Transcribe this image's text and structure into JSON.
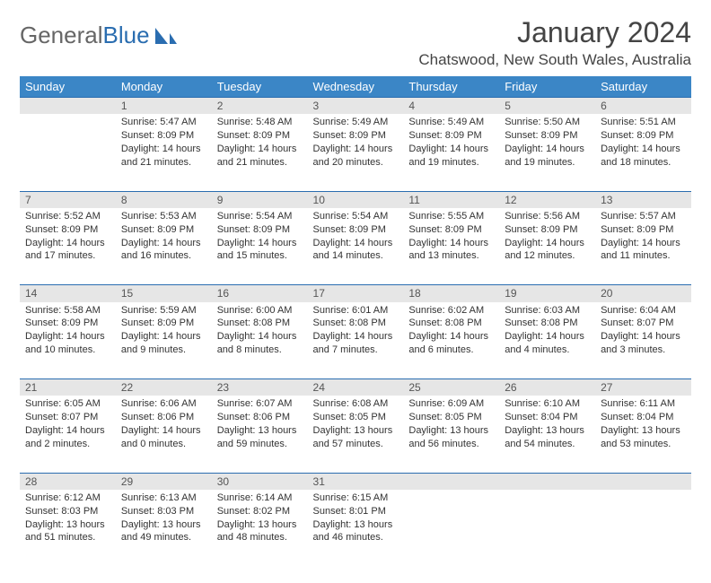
{
  "logo": {
    "text1": "General",
    "text2": "Blue"
  },
  "title": "January 2024",
  "location": "Chatswood, New South Wales, Australia",
  "colors": {
    "header_bg": "#3b86c6",
    "header_text": "#ffffff",
    "daynum_bg": "#e6e6e6",
    "row_border": "#2a6db0",
    "logo_gray": "#666666",
    "logo_blue": "#2a6db0"
  },
  "weekdays": [
    "Sunday",
    "Monday",
    "Tuesday",
    "Wednesday",
    "Thursday",
    "Friday",
    "Saturday"
  ],
  "weeks": [
    {
      "nums": [
        "",
        "1",
        "2",
        "3",
        "4",
        "5",
        "6"
      ],
      "cells": [
        {},
        {
          "sunrise": "Sunrise: 5:47 AM",
          "sunset": "Sunset: 8:09 PM",
          "daylight": "Daylight: 14 hours and 21 minutes."
        },
        {
          "sunrise": "Sunrise: 5:48 AM",
          "sunset": "Sunset: 8:09 PM",
          "daylight": "Daylight: 14 hours and 21 minutes."
        },
        {
          "sunrise": "Sunrise: 5:49 AM",
          "sunset": "Sunset: 8:09 PM",
          "daylight": "Daylight: 14 hours and 20 minutes."
        },
        {
          "sunrise": "Sunrise: 5:49 AM",
          "sunset": "Sunset: 8:09 PM",
          "daylight": "Daylight: 14 hours and 19 minutes."
        },
        {
          "sunrise": "Sunrise: 5:50 AM",
          "sunset": "Sunset: 8:09 PM",
          "daylight": "Daylight: 14 hours and 19 minutes."
        },
        {
          "sunrise": "Sunrise: 5:51 AM",
          "sunset": "Sunset: 8:09 PM",
          "daylight": "Daylight: 14 hours and 18 minutes."
        }
      ]
    },
    {
      "nums": [
        "7",
        "8",
        "9",
        "10",
        "11",
        "12",
        "13"
      ],
      "cells": [
        {
          "sunrise": "Sunrise: 5:52 AM",
          "sunset": "Sunset: 8:09 PM",
          "daylight": "Daylight: 14 hours and 17 minutes."
        },
        {
          "sunrise": "Sunrise: 5:53 AM",
          "sunset": "Sunset: 8:09 PM",
          "daylight": "Daylight: 14 hours and 16 minutes."
        },
        {
          "sunrise": "Sunrise: 5:54 AM",
          "sunset": "Sunset: 8:09 PM",
          "daylight": "Daylight: 14 hours and 15 minutes."
        },
        {
          "sunrise": "Sunrise: 5:54 AM",
          "sunset": "Sunset: 8:09 PM",
          "daylight": "Daylight: 14 hours and 14 minutes."
        },
        {
          "sunrise": "Sunrise: 5:55 AM",
          "sunset": "Sunset: 8:09 PM",
          "daylight": "Daylight: 14 hours and 13 minutes."
        },
        {
          "sunrise": "Sunrise: 5:56 AM",
          "sunset": "Sunset: 8:09 PM",
          "daylight": "Daylight: 14 hours and 12 minutes."
        },
        {
          "sunrise": "Sunrise: 5:57 AM",
          "sunset": "Sunset: 8:09 PM",
          "daylight": "Daylight: 14 hours and 11 minutes."
        }
      ]
    },
    {
      "nums": [
        "14",
        "15",
        "16",
        "17",
        "18",
        "19",
        "20"
      ],
      "cells": [
        {
          "sunrise": "Sunrise: 5:58 AM",
          "sunset": "Sunset: 8:09 PM",
          "daylight": "Daylight: 14 hours and 10 minutes."
        },
        {
          "sunrise": "Sunrise: 5:59 AM",
          "sunset": "Sunset: 8:09 PM",
          "daylight": "Daylight: 14 hours and 9 minutes."
        },
        {
          "sunrise": "Sunrise: 6:00 AM",
          "sunset": "Sunset: 8:08 PM",
          "daylight": "Daylight: 14 hours and 8 minutes."
        },
        {
          "sunrise": "Sunrise: 6:01 AM",
          "sunset": "Sunset: 8:08 PM",
          "daylight": "Daylight: 14 hours and 7 minutes."
        },
        {
          "sunrise": "Sunrise: 6:02 AM",
          "sunset": "Sunset: 8:08 PM",
          "daylight": "Daylight: 14 hours and 6 minutes."
        },
        {
          "sunrise": "Sunrise: 6:03 AM",
          "sunset": "Sunset: 8:08 PM",
          "daylight": "Daylight: 14 hours and 4 minutes."
        },
        {
          "sunrise": "Sunrise: 6:04 AM",
          "sunset": "Sunset: 8:07 PM",
          "daylight": "Daylight: 14 hours and 3 minutes."
        }
      ]
    },
    {
      "nums": [
        "21",
        "22",
        "23",
        "24",
        "25",
        "26",
        "27"
      ],
      "cells": [
        {
          "sunrise": "Sunrise: 6:05 AM",
          "sunset": "Sunset: 8:07 PM",
          "daylight": "Daylight: 14 hours and 2 minutes."
        },
        {
          "sunrise": "Sunrise: 6:06 AM",
          "sunset": "Sunset: 8:06 PM",
          "daylight": "Daylight: 14 hours and 0 minutes."
        },
        {
          "sunrise": "Sunrise: 6:07 AM",
          "sunset": "Sunset: 8:06 PM",
          "daylight": "Daylight: 13 hours and 59 minutes."
        },
        {
          "sunrise": "Sunrise: 6:08 AM",
          "sunset": "Sunset: 8:05 PM",
          "daylight": "Daylight: 13 hours and 57 minutes."
        },
        {
          "sunrise": "Sunrise: 6:09 AM",
          "sunset": "Sunset: 8:05 PM",
          "daylight": "Daylight: 13 hours and 56 minutes."
        },
        {
          "sunrise": "Sunrise: 6:10 AM",
          "sunset": "Sunset: 8:04 PM",
          "daylight": "Daylight: 13 hours and 54 minutes."
        },
        {
          "sunrise": "Sunrise: 6:11 AM",
          "sunset": "Sunset: 8:04 PM",
          "daylight": "Daylight: 13 hours and 53 minutes."
        }
      ]
    },
    {
      "nums": [
        "28",
        "29",
        "30",
        "31",
        "",
        "",
        ""
      ],
      "cells": [
        {
          "sunrise": "Sunrise: 6:12 AM",
          "sunset": "Sunset: 8:03 PM",
          "daylight": "Daylight: 13 hours and 51 minutes."
        },
        {
          "sunrise": "Sunrise: 6:13 AM",
          "sunset": "Sunset: 8:03 PM",
          "daylight": "Daylight: 13 hours and 49 minutes."
        },
        {
          "sunrise": "Sunrise: 6:14 AM",
          "sunset": "Sunset: 8:02 PM",
          "daylight": "Daylight: 13 hours and 48 minutes."
        },
        {
          "sunrise": "Sunrise: 6:15 AM",
          "sunset": "Sunset: 8:01 PM",
          "daylight": "Daylight: 13 hours and 46 minutes."
        },
        {},
        {},
        {}
      ]
    }
  ]
}
